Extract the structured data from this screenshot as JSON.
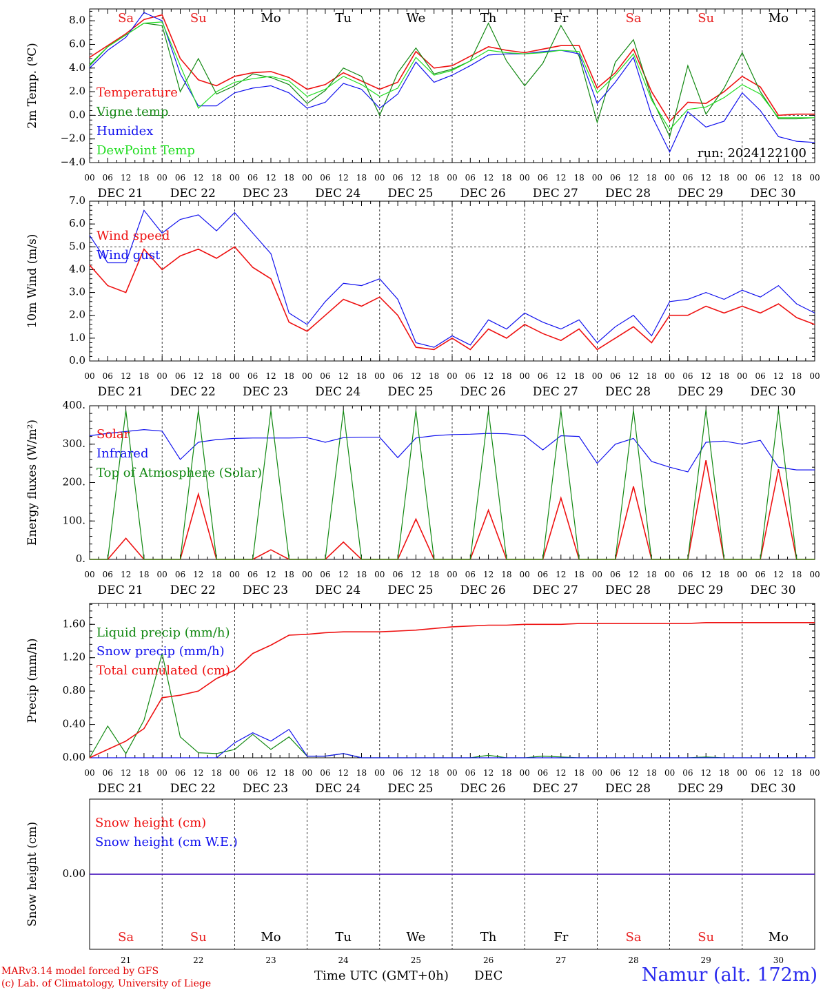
{
  "footer": {
    "credit1": "MARv3.14 model forced by GFS",
    "credit2": "(c) Lab. of Climatology, University of Liege",
    "xaxis_title": "Time UTC (GMT+0h)",
    "month": "DEC",
    "site": "Namur (alt. 172m)"
  },
  "hour_labels": [
    "00",
    "06",
    "12",
    "18"
  ],
  "end_hour_label": "00",
  "date_labels": [
    "DEC 21",
    "DEC 22",
    "DEC 23",
    "DEC 24",
    "DEC 25",
    "DEC 26",
    "DEC 27",
    "DEC 28",
    "DEC 29",
    "DEC 30"
  ],
  "day_names": [
    "Sa",
    "Su",
    "Mo",
    "Tu",
    "We",
    "Th",
    "Fr",
    "Sa",
    "Su",
    "Mo"
  ],
  "day_numbers": [
    "21",
    "22",
    "23",
    "24",
    "25",
    "26",
    "27",
    "28",
    "29",
    "30"
  ],
  "colors": {
    "weekend": "#e82020",
    "weekday": "#000000",
    "red": "#ee1111",
    "green": "#118811",
    "blue": "#1111ee",
    "lightgreen": "#22dd22"
  },
  "chart_data": [
    {
      "type": "line",
      "ylabel": "2m Temp. (ºC)",
      "ylim": [
        -4.0,
        9.0
      ],
      "yticks": [
        "8.0",
        "6.0",
        "4.0",
        "2.0",
        "0.0",
        "−2.0",
        "−4.0"
      ],
      "ytick_values": [
        8,
        6,
        4,
        2,
        0,
        -2,
        -4
      ],
      "dashed_lines": [
        0
      ],
      "run_label": "run: 2024122100",
      "x_hours": [
        0,
        6,
        12,
        18,
        24,
        30,
        36,
        42,
        48,
        54,
        60,
        66,
        72,
        78,
        84,
        90,
        96,
        102,
        108,
        114,
        120,
        126,
        132,
        138,
        144,
        150,
        156,
        162,
        168,
        174,
        180,
        186,
        192,
        198,
        204,
        210,
        216,
        222,
        228,
        234,
        240
      ],
      "series": [
        {
          "name": "Temperature",
          "color": "red",
          "values": [
            4.9,
            5.9,
            6.9,
            8.1,
            8.5,
            4.8,
            3.0,
            2.5,
            3.3,
            3.6,
            3.7,
            3.2,
            2.2,
            2.6,
            3.6,
            2.9,
            2.2,
            2.8,
            5.4,
            4.0,
            4.2,
            5.0,
            5.8,
            5.5,
            5.3,
            5.6,
            5.9,
            5.9,
            2.3,
            3.6,
            5.6,
            2.0,
            -0.5,
            1.1,
            1.0,
            2.0,
            3.3,
            2.4,
            0.0,
            0.1,
            0.1
          ]
        },
        {
          "name": "Vigne temp",
          "color": "green",
          "values": [
            4.2,
            5.8,
            6.8,
            7.8,
            7.6,
            2.0,
            4.8,
            1.8,
            2.5,
            3.5,
            3.2,
            2.6,
            1.0,
            2.1,
            4.0,
            3.3,
            0.0,
            3.6,
            5.7,
            3.5,
            3.9,
            4.6,
            7.8,
            4.6,
            2.5,
            4.4,
            7.6,
            5.0,
            -0.6,
            4.5,
            6.4,
            1.5,
            -1.8,
            4.2,
            0.1,
            2.3,
            5.3,
            2.0,
            -0.3,
            -0.3,
            -0.2
          ]
        },
        {
          "name": "Humidex",
          "color": "blue",
          "values": [
            4.0,
            5.5,
            6.6,
            8.7,
            8.0,
            3.5,
            0.8,
            0.8,
            1.9,
            2.3,
            2.5,
            1.9,
            0.6,
            1.1,
            2.7,
            2.2,
            0.6,
            1.8,
            4.5,
            2.8,
            3.4,
            4.2,
            5.1,
            5.2,
            5.2,
            5.4,
            5.5,
            5.2,
            1.0,
            2.8,
            4.9,
            0.0,
            -3.1,
            0.3,
            -1.0,
            -0.5,
            1.9,
            0.4,
            -1.8,
            -2.2,
            -2.3
          ]
        },
        {
          "name": "DewPoint Temp",
          "color": "lightgreen",
          "values": [
            4.3,
            5.8,
            6.8,
            7.8,
            7.9,
            4.2,
            0.6,
            2.0,
            2.8,
            3.1,
            3.3,
            2.9,
            1.6,
            2.2,
            3.3,
            2.6,
            1.6,
            2.3,
            4.9,
            3.4,
            3.8,
            4.6,
            5.5,
            5.3,
            5.2,
            5.3,
            5.5,
            5.4,
            1.9,
            3.4,
            5.2,
            1.3,
            -1.2,
            0.5,
            0.7,
            1.5,
            2.6,
            1.8,
            -0.2,
            -0.2,
            -0.2
          ]
        }
      ]
    },
    {
      "type": "line",
      "ylabel": "10m Wind (m/s)",
      "ylim": [
        0.0,
        7.0
      ],
      "yticks": [
        "7.0",
        "6.0",
        "5.0",
        "4.0",
        "3.0",
        "2.0",
        "1.0",
        "0.0"
      ],
      "ytick_values": [
        7,
        6,
        5,
        4,
        3,
        2,
        1,
        0
      ],
      "dashed_lines": [
        5.0
      ],
      "x_hours": [
        0,
        6,
        12,
        18,
        24,
        30,
        36,
        42,
        48,
        54,
        60,
        66,
        72,
        78,
        84,
        90,
        96,
        102,
        108,
        114,
        120,
        126,
        132,
        138,
        144,
        150,
        156,
        162,
        168,
        174,
        180,
        186,
        192,
        198,
        204,
        210,
        216,
        222,
        228,
        234,
        240
      ],
      "series": [
        {
          "name": "Wind speed",
          "color": "red",
          "values": [
            4.2,
            3.3,
            3.0,
            4.9,
            4.0,
            4.6,
            4.9,
            4.5,
            5.0,
            4.1,
            3.6,
            1.7,
            1.3,
            2.0,
            2.7,
            2.4,
            2.8,
            2.0,
            0.6,
            0.5,
            1.0,
            0.5,
            1.4,
            1.0,
            1.6,
            1.2,
            0.9,
            1.4,
            0.5,
            1.0,
            1.5,
            0.8,
            2.0,
            2.0,
            2.4,
            2.1,
            2.4,
            2.1,
            2.5,
            1.9,
            1.6
          ]
        },
        {
          "name": "Wind gust",
          "color": "blue",
          "values": [
            5.5,
            4.3,
            4.3,
            6.6,
            5.6,
            6.2,
            6.4,
            5.7,
            6.5,
            5.6,
            4.7,
            2.1,
            1.6,
            2.6,
            3.4,
            3.3,
            3.6,
            2.7,
            0.8,
            0.6,
            1.1,
            0.7,
            1.8,
            1.4,
            2.1,
            1.7,
            1.4,
            1.8,
            0.8,
            1.5,
            2.0,
            1.1,
            2.6,
            2.7,
            3.0,
            2.7,
            3.1,
            2.8,
            3.3,
            2.5,
            2.1
          ]
        }
      ]
    },
    {
      "type": "line",
      "ylabel": "Energy fluxes (W/m²)",
      "ylim": [
        0,
        400
      ],
      "yticks": [
        "400.",
        "300.",
        "200.",
        "100.",
        "0."
      ],
      "ytick_values": [
        400,
        300,
        200,
        100,
        0
      ],
      "dashed_lines": [],
      "x_hours": [
        0,
        6,
        12,
        18,
        24,
        30,
        36,
        42,
        48,
        54,
        60,
        66,
        72,
        78,
        84,
        90,
        96,
        102,
        108,
        114,
        120,
        126,
        132,
        138,
        144,
        150,
        156,
        162,
        168,
        174,
        180,
        186,
        192,
        198,
        204,
        210,
        216,
        222,
        228,
        234,
        240
      ],
      "series": [
        {
          "name": "Solar",
          "color": "red",
          "values": [
            0,
            0,
            55,
            0,
            0,
            0,
            170,
            0,
            0,
            0,
            25,
            0,
            0,
            0,
            45,
            0,
            0,
            0,
            105,
            0,
            0,
            0,
            128,
            0,
            0,
            0,
            160,
            0,
            0,
            0,
            190,
            0,
            0,
            0,
            258,
            0,
            0,
            0,
            235,
            0,
            0
          ]
        },
        {
          "name": "Infrared",
          "color": "blue",
          "values": [
            322,
            328,
            333,
            338,
            334,
            260,
            305,
            312,
            315,
            316,
            316,
            316,
            317,
            305,
            317,
            318,
            318,
            265,
            316,
            322,
            325,
            326,
            328,
            327,
            322,
            285,
            322,
            320,
            250,
            300,
            315,
            255,
            240,
            228,
            305,
            308,
            300,
            310,
            240,
            233,
            233
          ]
        },
        {
          "name": "Top of Atmosphere (Solar)",
          "color": "green",
          "values": [
            0,
            0,
            388,
            0,
            0,
            0,
            388,
            0,
            0,
            0,
            388,
            0,
            0,
            0,
            388,
            0,
            0,
            0,
            388,
            0,
            0,
            0,
            388,
            0,
            0,
            0,
            388,
            0,
            0,
            0,
            388,
            0,
            0,
            0,
            390,
            0,
            0,
            0,
            390,
            0,
            0
          ]
        }
      ]
    },
    {
      "type": "line",
      "ylabel": "Precip (mm/h)",
      "ylim": [
        0.0,
        1.85
      ],
      "yticks": [
        "1.60",
        "1.20",
        "0.80",
        "0.40",
        "0.00"
      ],
      "ytick_values": [
        1.6,
        1.2,
        0.8,
        0.4,
        0.0
      ],
      "dashed_lines": [],
      "x_hours": [
        0,
        6,
        12,
        18,
        24,
        30,
        36,
        42,
        48,
        54,
        60,
        66,
        72,
        78,
        84,
        90,
        96,
        102,
        108,
        114,
        120,
        126,
        132,
        138,
        144,
        150,
        156,
        162,
        168,
        174,
        180,
        186,
        192,
        198,
        204,
        210,
        216,
        222,
        228,
        234,
        240
      ],
      "series": [
        {
          "name": "Liquid precip (mm/h)",
          "color": "green",
          "values": [
            0.0,
            0.38,
            0.05,
            0.45,
            1.25,
            0.25,
            0.06,
            0.05,
            0.1,
            0.28,
            0.1,
            0.25,
            0.02,
            0.02,
            0.05,
            0.0,
            0.0,
            0.0,
            0.0,
            0.0,
            0.0,
            0.0,
            0.03,
            0.0,
            0.0,
            0.02,
            0.01,
            0.0,
            0.0,
            0.0,
            0.0,
            0.0,
            0.0,
            0.0,
            0.01,
            0.0,
            0.0,
            0.0,
            0.0,
            0.0,
            0.0
          ]
        },
        {
          "name": "Snow precip (mm/h)",
          "color": "blue",
          "values": [
            0.0,
            0.0,
            0.0,
            0.0,
            0.0,
            0.0,
            0.0,
            0.0,
            0.18,
            0.3,
            0.2,
            0.34,
            0.02,
            0.02,
            0.05,
            0.0,
            0.0,
            0.0,
            0.0,
            0.0,
            0.0,
            0.0,
            0.0,
            0.0,
            0.0,
            0.0,
            0.0,
            0.0,
            0.0,
            0.0,
            0.0,
            0.0,
            0.0,
            0.0,
            0.0,
            0.0,
            0.0,
            0.0,
            0.0,
            0.0,
            0.0
          ]
        },
        {
          "name": "Total cumulated (cm)",
          "color": "red",
          "values": [
            0.0,
            0.1,
            0.2,
            0.35,
            0.72,
            0.75,
            0.8,
            0.95,
            1.05,
            1.25,
            1.35,
            1.47,
            1.48,
            1.5,
            1.51,
            1.51,
            1.51,
            1.52,
            1.53,
            1.55,
            1.57,
            1.58,
            1.59,
            1.59,
            1.6,
            1.6,
            1.6,
            1.61,
            1.61,
            1.61,
            1.61,
            1.61,
            1.61,
            1.61,
            1.62,
            1.62,
            1.62,
            1.62,
            1.62,
            1.62,
            1.62
          ]
        }
      ]
    },
    {
      "type": "line",
      "ylabel": "Snow height (cm)",
      "ylim": [
        -1.0,
        1.0
      ],
      "yticks": [
        "0.00"
      ],
      "ytick_values": [
        0.0
      ],
      "dashed_lines": [],
      "x_hours": [
        0,
        240
      ],
      "series": [
        {
          "name": "Snow height (cm)",
          "color": "red",
          "values": [
            0.0,
            0.0
          ]
        },
        {
          "name": "Snow height (cm W.E.)",
          "color": "blue",
          "values": [
            0.0,
            0.0
          ]
        }
      ]
    }
  ]
}
